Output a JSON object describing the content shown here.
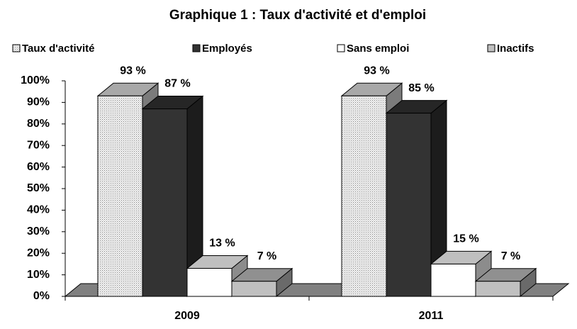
{
  "chart_data": {
    "type": "bar3d",
    "title": "Graphique 1 : Taux d'activité et d'emploi",
    "categories": [
      "2009",
      "2011"
    ],
    "series": [
      {
        "name": "Taux d'activité",
        "color": "#e0e0e0",
        "pattern": "dots",
        "values": [
          93,
          93
        ],
        "value_labels": [
          "93 %",
          "93 %"
        ]
      },
      {
        "name": "Employés",
        "color": "#333333",
        "values": [
          87,
          85
        ],
        "value_labels": [
          "87 %",
          "85 %"
        ]
      },
      {
        "name": "Sans emploi",
        "color": "#ffffff",
        "values": [
          13,
          15
        ],
        "value_labels": [
          "13 %",
          "15 %"
        ]
      },
      {
        "name": "Inactifs",
        "color": "#c0c0c0",
        "values": [
          7,
          7
        ],
        "value_labels": [
          "7 %",
          "7 %"
        ]
      }
    ],
    "ylim": [
      0,
      100
    ],
    "yticks": [
      {
        "value": 0,
        "label": "0%"
      },
      {
        "value": 10,
        "label": "10%"
      },
      {
        "value": 20,
        "label": "20%"
      },
      {
        "value": 30,
        "label": "30%"
      },
      {
        "value": 40,
        "label": "40%"
      },
      {
        "value": 50,
        "label": "50%"
      },
      {
        "value": 60,
        "label": "60%"
      },
      {
        "value": 70,
        "label": "70%"
      },
      {
        "value": 80,
        "label": "80%"
      },
      {
        "value": 90,
        "label": "90%"
      },
      {
        "value": 100,
        "label": "100%"
      }
    ],
    "legend": "top"
  }
}
